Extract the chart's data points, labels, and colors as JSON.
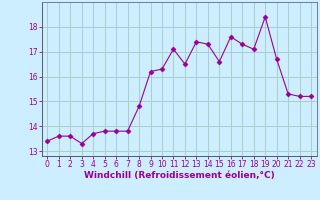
{
  "x": [
    0,
    1,
    2,
    3,
    4,
    5,
    6,
    7,
    8,
    9,
    10,
    11,
    12,
    13,
    14,
    15,
    16,
    17,
    18,
    19,
    20,
    21,
    22,
    23
  ],
  "y": [
    13.4,
    13.6,
    13.6,
    13.3,
    13.7,
    13.8,
    13.8,
    13.8,
    14.8,
    16.2,
    16.3,
    17.1,
    16.5,
    17.4,
    17.3,
    16.6,
    17.6,
    17.3,
    17.1,
    18.4,
    16.7,
    15.3,
    15.2,
    15.2
  ],
  "line_color": "#990099",
  "marker": "D",
  "marker_size": 2.5,
  "bg_color": "#cceeff",
  "grid_color": "#aacccc",
  "xlabel": "Windchill (Refroidissement éolien,°C)",
  "xlabel_color": "#990099",
  "tick_color": "#990099",
  "ylim": [
    12.8,
    19.0
  ],
  "yticks": [
    13,
    14,
    15,
    16,
    17,
    18
  ],
  "xlim": [
    -0.5,
    23.5
  ],
  "xticks": [
    0,
    1,
    2,
    3,
    4,
    5,
    6,
    7,
    8,
    9,
    10,
    11,
    12,
    13,
    14,
    15,
    16,
    17,
    18,
    19,
    20,
    21,
    22,
    23
  ],
  "tick_fontsize": 5.5,
  "xlabel_fontsize": 6.5,
  "linewidth": 0.8
}
